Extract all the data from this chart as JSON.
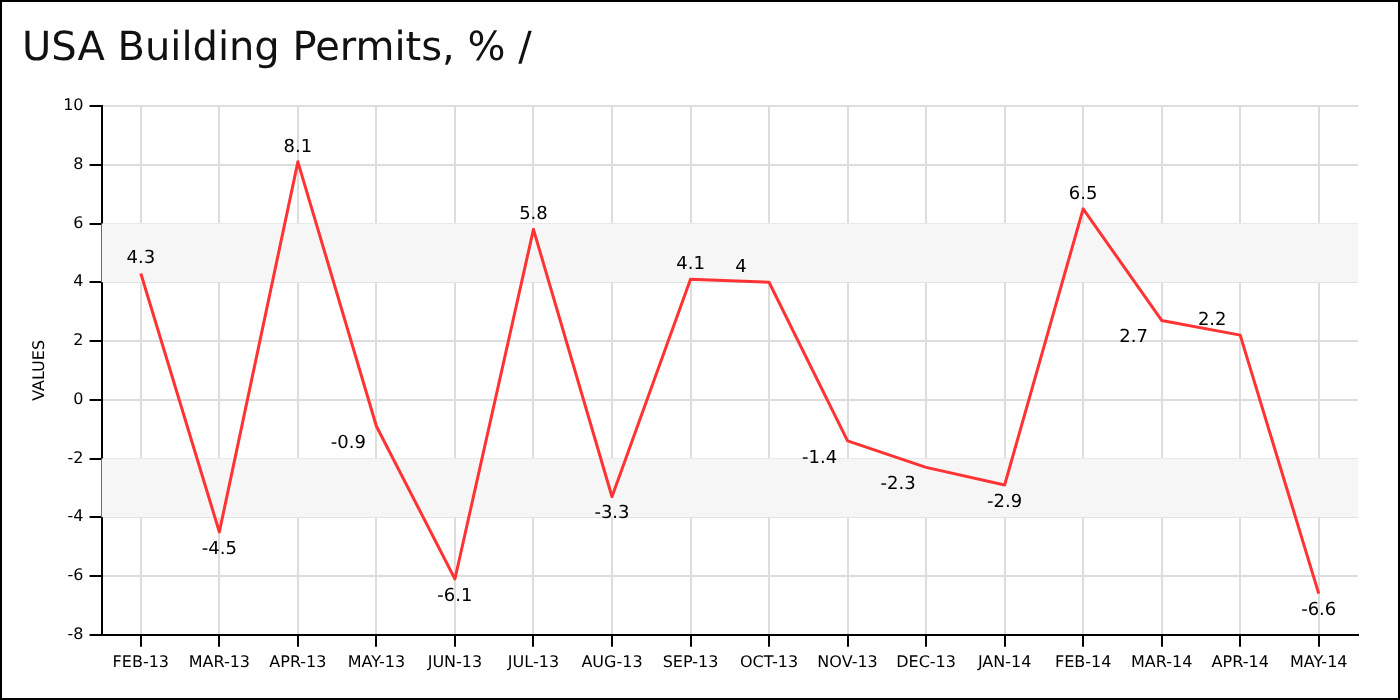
{
  "chart_data": {
    "type": "line",
    "title": "USA Building Permits, % /",
    "ylabel": "VALUES",
    "categories": [
      "FEB-13",
      "MAR-13",
      "APR-13",
      "MAY-13",
      "JUN-13",
      "JUL-13",
      "AUG-13",
      "SEP-13",
      "OCT-13",
      "NOV-13",
      "DEC-13",
      "JAN-14",
      "FEB-14",
      "MAR-14",
      "APR-14",
      "MAY-14"
    ],
    "series": [
      {
        "color": "#ff3333",
        "values": [
          4.3,
          -4.5,
          8.1,
          -0.9,
          -6.1,
          5.8,
          -3.3,
          4.1,
          4,
          -1.4,
          -2.3,
          -2.9,
          6.5,
          2.7,
          2.2,
          -6.6
        ]
      }
    ],
    "ylim": [
      -8,
      10
    ],
    "yticks": [
      -8,
      -6,
      -4,
      -2,
      0,
      2,
      4,
      6,
      8,
      10
    ],
    "grid": true,
    "data_labels": true,
    "marker": "none",
    "line_style": "solid",
    "legend": false
  }
}
